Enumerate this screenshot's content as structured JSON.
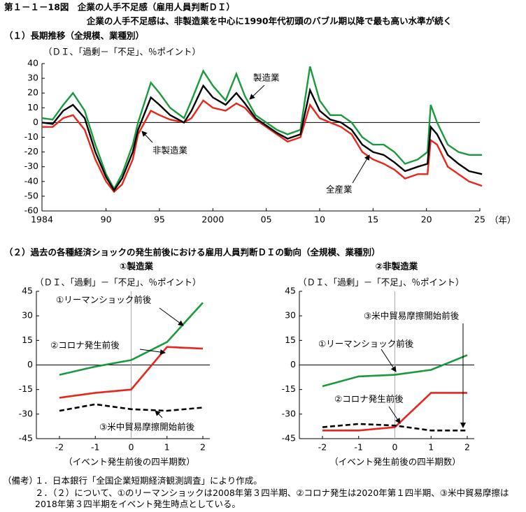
{
  "title": "第１－１－18図　企業の人手不足感（雇用人員判断ＤＩ）",
  "subtitle": "企業の人手不足感は、非製造業を中心に1990年代初頭のバブル期以降で最も高い水準が続く",
  "section2_title": "（２）過去の各種経済ショックの発生前後における雇用人員判断ＤＩの動向（全規模、業種別）",
  "chart_data": [
    {
      "type": "line",
      "title": "（１）長期推移（全規模、業種別）",
      "y_label": "（ＤＩ、「過剰－「不足」、％ポイント）",
      "x_label": "（年）",
      "x": [
        1984,
        1985,
        1986,
        1986.9,
        1988,
        1989,
        1990,
        1990.75,
        1991.5,
        1992.5,
        1993,
        1994.2,
        1995,
        1996,
        1997.3,
        1998,
        1999.1,
        2000,
        2001.2,
        2002.2,
        2003,
        2004,
        2005,
        2006,
        2007,
        2008.2,
        2009.1,
        2010,
        2011,
        2012,
        2013,
        2014,
        2015,
        2016,
        2017,
        2018,
        2019.2,
        2020.1,
        2020.4,
        2021,
        2022,
        2023,
        2024,
        2025.2
      ],
      "xlim": [
        1984,
        2025
      ],
      "xticks": [
        1984,
        {
          "value": 1990,
          "label": "90"
        },
        {
          "value": 1995,
          "label": "95"
        },
        2000,
        {
          "value": 2005,
          "label": "05"
        },
        {
          "value": 2010,
          "label": "10"
        },
        {
          "value": 2015,
          "label": "15"
        },
        {
          "value": 2020,
          "label": "20"
        },
        {
          "value": 2025,
          "label": "25"
        }
      ],
      "ylim": [
        -60,
        40
      ],
      "yticks": [
        -60,
        -50,
        -40,
        -30,
        -20,
        -10,
        0,
        10,
        20,
        30,
        40
      ],
      "series": [
        {
          "name": "製造業",
          "color": "#1a9a3c",
          "line_style": "solid",
          "values": [
            3,
            2,
            12,
            20,
            8,
            -15,
            -35,
            -45,
            -35,
            -15,
            0,
            27,
            20,
            10,
            3,
            15,
            35,
            25,
            15,
            33,
            18,
            5,
            0,
            -5,
            -8,
            -5,
            38,
            15,
            5,
            5,
            0,
            -10,
            -15,
            -15,
            -20,
            -28,
            -25,
            -20,
            12,
            0,
            -15,
            -20,
            -22,
            -22
          ]
        },
        {
          "name": "非製造業",
          "color": "#e8261c",
          "line_style": "solid",
          "values": [
            -3,
            -3,
            3,
            5,
            -5,
            -25,
            -40,
            -47,
            -42,
            -25,
            -8,
            8,
            5,
            2,
            0,
            3,
            15,
            10,
            8,
            13,
            10,
            2,
            -3,
            -8,
            -13,
            -10,
            12,
            3,
            0,
            -3,
            -8,
            -20,
            -25,
            -28,
            -32,
            -38,
            -35,
            -35,
            -12,
            -15,
            -30,
            -35,
            -40,
            -43
          ]
        },
        {
          "name": "全産業",
          "color": "#000000",
          "line_style": "solid",
          "values": [
            0,
            -1,
            8,
            12,
            3,
            -20,
            -37,
            -46,
            -38,
            -20,
            -5,
            17,
            12,
            5,
            0,
            8,
            25,
            17,
            12,
            20,
            13,
            3,
            -2,
            -7,
            -11,
            -8,
            22,
            8,
            2,
            0,
            -5,
            -15,
            -20,
            -22,
            -27,
            -33,
            -30,
            -28,
            -3,
            -8,
            -22,
            -28,
            -33,
            -35
          ]
        }
      ]
    },
    {
      "type": "line",
      "title": "①製造業",
      "y_label": "（ＤＩ、「過剰」－「不足」、％ポイント）",
      "x_label": "（イベント発生前後の四半期数）",
      "x": [
        -2,
        -1,
        0,
        1,
        2
      ],
      "xlim": [
        -2,
        2
      ],
      "xticks": [
        -2,
        -1,
        0,
        1,
        2
      ],
      "ylim": [
        -45,
        45
      ],
      "yticks": [
        -45,
        -30,
        -15,
        0,
        15,
        30,
        45
      ],
      "series": [
        {
          "name": "①リーマンショック前後",
          "color": "#1a9a3c",
          "line_style": "solid",
          "values": [
            -6,
            -1,
            3,
            14,
            38
          ]
        },
        {
          "name": "②コロナ発生前後",
          "color": "#e8261c",
          "line_style": "solid",
          "values": [
            -20,
            -17,
            -15,
            11,
            10
          ]
        },
        {
          "name": "③米中貿易摩擦開始前後",
          "color": "#000000",
          "line_style": "dashed",
          "values": [
            -28,
            -24,
            -27,
            -28,
            -26
          ]
        }
      ]
    },
    {
      "type": "line",
      "title": "②非製造業",
      "y_label": "（ＤＩ、「過剰」－「不足」、％ポイント）",
      "x_label": "（イベント発生前後の四半期数）",
      "x": [
        -2,
        -1,
        0,
        1,
        2
      ],
      "xlim": [
        -2,
        2
      ],
      "xticks": [
        -2,
        -1,
        0,
        1,
        2
      ],
      "ylim": [
        -45,
        45
      ],
      "yticks": [
        -45,
        -30,
        -15,
        0,
        15,
        30,
        45
      ],
      "series": [
        {
          "name": "①リーマンショック前後",
          "color": "#1a9a3c",
          "line_style": "solid",
          "values": [
            -13,
            -7,
            -6,
            -3,
            6
          ]
        },
        {
          "name": "②コロナ発生前後",
          "color": "#e8261c",
          "line_style": "solid",
          "values": [
            -40,
            -40,
            -38,
            -17,
            -17
          ]
        },
        {
          "name": "③米中貿易摩擦開始前後",
          "color": "#000000",
          "line_style": "dashed",
          "values": [
            -38,
            -36,
            -37,
            -40,
            -40
          ]
        }
      ]
    }
  ],
  "notes": {
    "label": "（備考）",
    "items": [
      "１．日本銀行「全国企業短期経済観測調査」により作成。",
      "２．（２）について、①のリーマンショックは2008年第３四半期、②コロナ発生は2020年第１四半期、③米中貿易摩擦は2018年第３四半期をイベント発生時点としている。"
    ]
  }
}
